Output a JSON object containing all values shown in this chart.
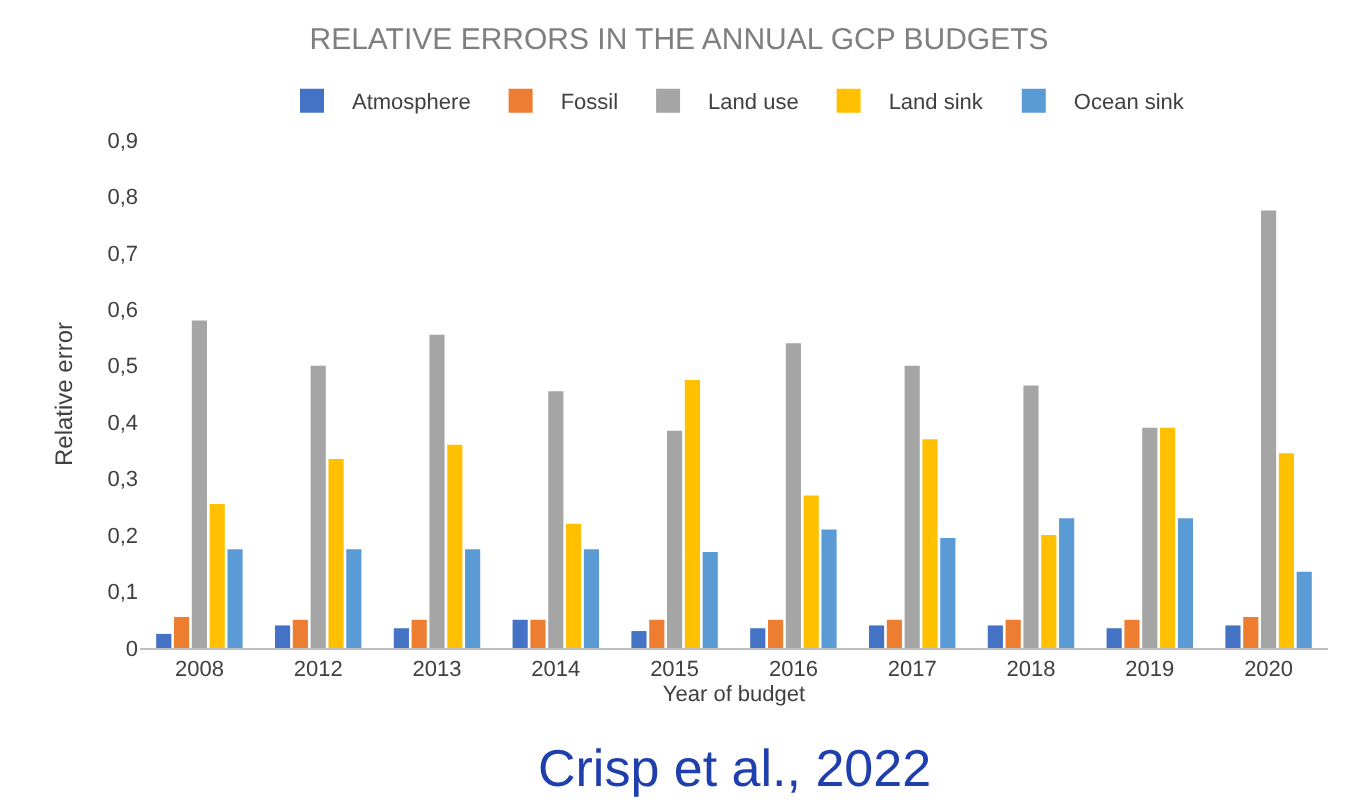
{
  "chart_data": {
    "type": "bar",
    "title": "RELATIVE ERRORS IN THE ANNUAL GCP BUDGETS",
    "xlabel": "Year of budget",
    "ylabel": "Relative error",
    "categories": [
      "2008",
      "2012",
      "2013",
      "2014",
      "2015",
      "2016",
      "2017",
      "2018",
      "2019",
      "2020"
    ],
    "series": [
      {
        "name": "Atmosphere",
        "color": "#4472c4",
        "values": [
          0.025,
          0.04,
          0.035,
          0.05,
          0.03,
          0.035,
          0.04,
          0.04,
          0.035,
          0.04
        ]
      },
      {
        "name": "Fossil",
        "color": "#ed7d31",
        "values": [
          0.055,
          0.05,
          0.05,
          0.05,
          0.05,
          0.05,
          0.05,
          0.05,
          0.05,
          0.055
        ]
      },
      {
        "name": "Land use",
        "color": "#a5a5a5",
        "values": [
          0.58,
          0.5,
          0.555,
          0.455,
          0.385,
          0.54,
          0.5,
          0.465,
          0.39,
          0.775
        ]
      },
      {
        "name": "Land sink",
        "color": "#ffc000",
        "values": [
          0.255,
          0.335,
          0.36,
          0.22,
          0.475,
          0.27,
          0.37,
          0.2,
          0.39,
          0.345
        ]
      },
      {
        "name": "Ocean sink",
        "color": "#5b9bd5",
        "values": [
          0.175,
          0.175,
          0.175,
          0.175,
          0.17,
          0.21,
          0.195,
          0.23,
          0.23,
          0.135
        ]
      }
    ],
    "ylim": [
      0,
      0.9
    ],
    "yticks": [
      {
        "value": 0,
        "label": "0"
      },
      {
        "value": 0.1,
        "label": "0,1"
      },
      {
        "value": 0.2,
        "label": "0,2"
      },
      {
        "value": 0.3,
        "label": "0,3"
      },
      {
        "value": 0.4,
        "label": "0,4"
      },
      {
        "value": 0.5,
        "label": "0,5"
      },
      {
        "value": 0.6,
        "label": "0,6"
      },
      {
        "value": 0.7,
        "label": "0,7"
      },
      {
        "value": 0.8,
        "label": "0,8"
      },
      {
        "value": 0.9,
        "label": "0,9"
      }
    ],
    "grid": false,
    "legend": "top",
    "annotations": [
      "Crisp et al., 2022"
    ]
  }
}
